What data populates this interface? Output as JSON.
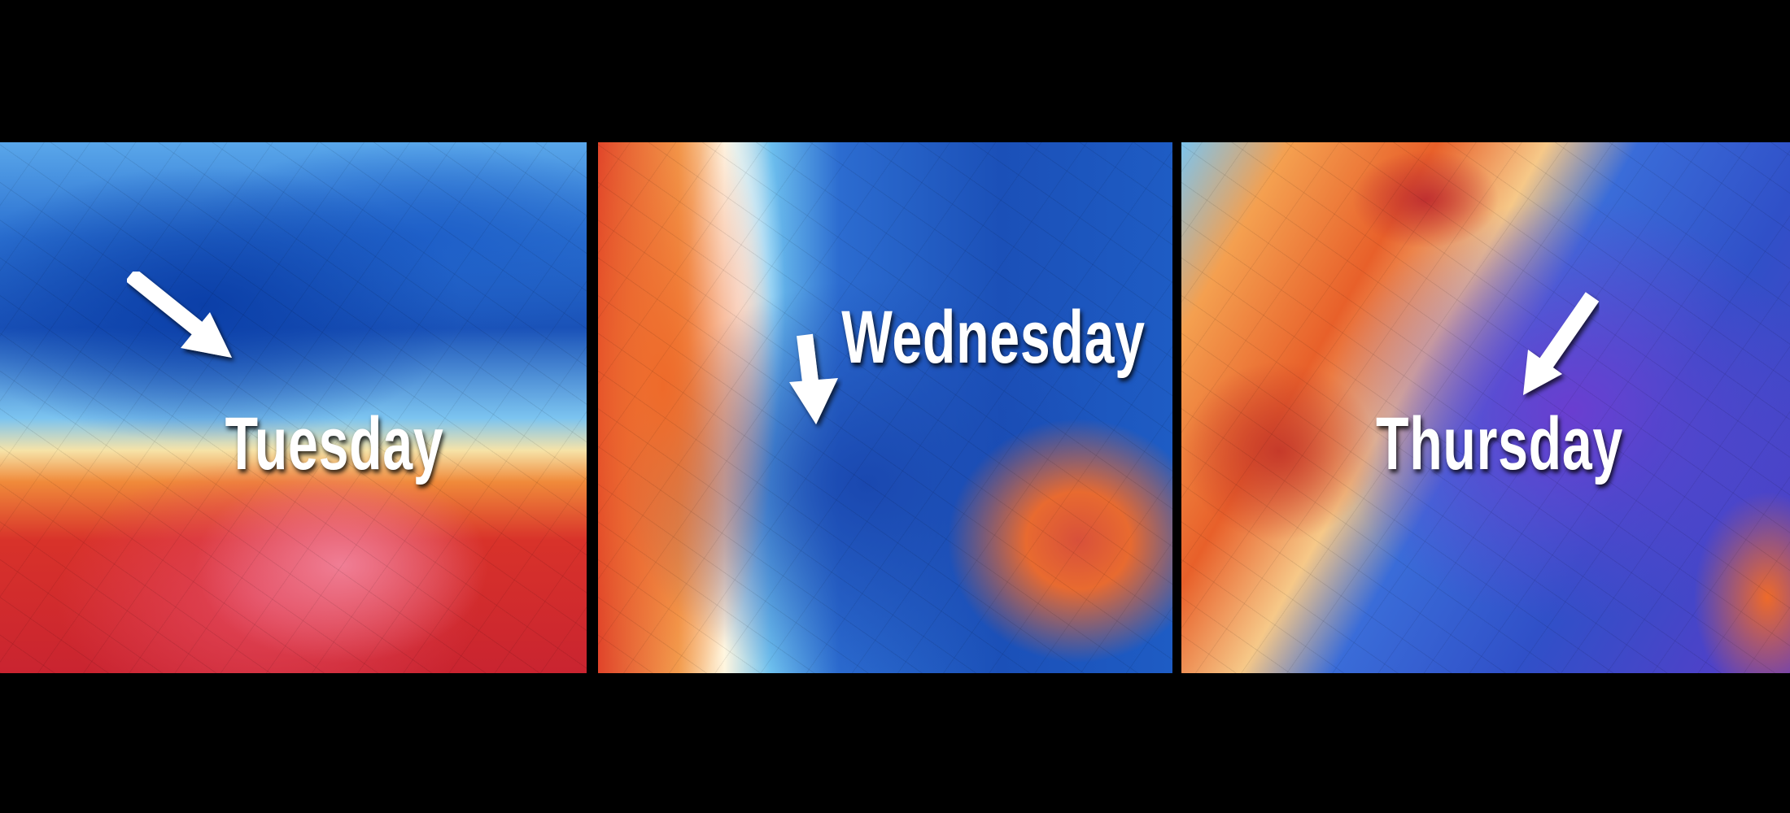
{
  "panels": [
    {
      "label": "Tuesday",
      "arrow_direction": "down-right"
    },
    {
      "label": "Wednesday",
      "arrow_direction": "down"
    },
    {
      "label": "Thursday",
      "arrow_direction": "down-left"
    }
  ],
  "colors": {
    "warm": "#d8322a",
    "cold": "#1a52b8",
    "very-cold": "#6a3ed0",
    "background": "#000000",
    "label": "#ffffff"
  }
}
